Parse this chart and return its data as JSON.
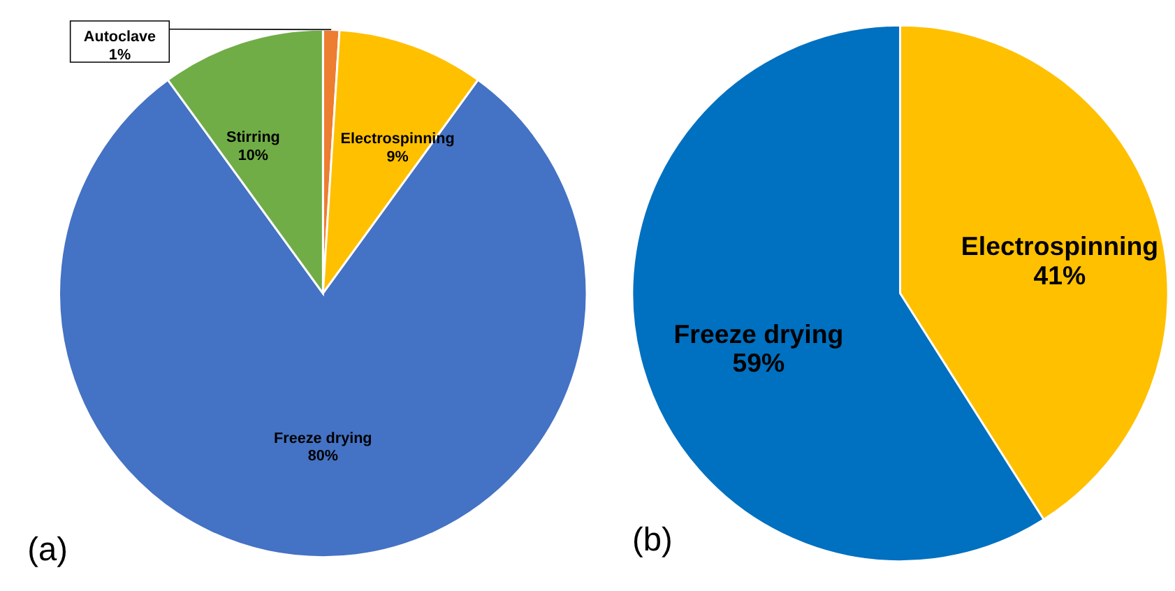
{
  "chart_data": [
    {
      "type": "pie",
      "categories": [
        "Autoclave",
        "Electrospinning",
        "Freeze drying",
        "Stirring"
      ],
      "values": [
        1,
        9,
        80,
        10
      ],
      "value_labels": [
        "1%",
        "9%",
        "80%",
        "10%"
      ],
      "colors": [
        "#ed7d31",
        "#ffc000",
        "#4472c4",
        "#70ad47"
      ],
      "annotations": [
        "(a)"
      ]
    },
    {
      "type": "pie",
      "categories": [
        "Electrospinning",
        "Freeze drying"
      ],
      "values": [
        41,
        59
      ],
      "value_labels": [
        "41%",
        "59%"
      ],
      "colors": [
        "#ffc000",
        "#0070c0"
      ],
      "annotations": [
        "(b)"
      ]
    }
  ]
}
